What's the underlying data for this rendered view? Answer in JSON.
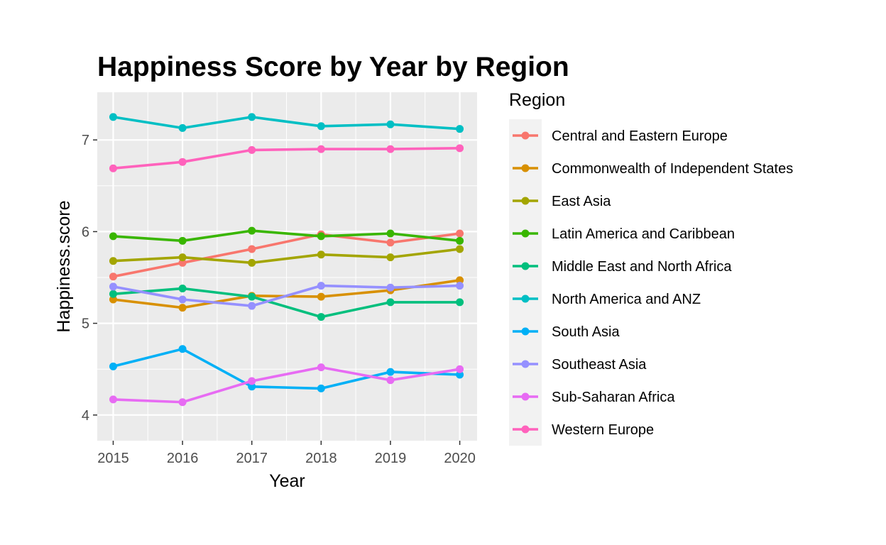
{
  "chart_data": {
    "type": "line",
    "title": "Happiness Score by Year by Region",
    "xlabel": "Year",
    "ylabel": "Happiness.score",
    "x": [
      2015,
      2016,
      2017,
      2018,
      2019,
      2020
    ],
    "xlim": [
      2014.77,
      2020.25
    ],
    "ylim": [
      3.72,
      7.52
    ],
    "y_ticks": [
      4,
      5,
      6,
      7
    ],
    "grid": true,
    "legend_title": "Region",
    "legend_position": "right",
    "series": [
      {
        "name": "Central and Eastern Europe",
        "color": "#F8766D",
        "values": [
          5.51,
          5.66,
          5.81,
          5.97,
          5.88,
          5.98
        ]
      },
      {
        "name": "Commonwealth of Independent States",
        "color": "#D89000",
        "values": [
          5.26,
          5.17,
          5.3,
          5.29,
          5.36,
          5.47
        ]
      },
      {
        "name": "East Asia",
        "color": "#A3A500",
        "values": [
          5.68,
          5.72,
          5.66,
          5.75,
          5.72,
          5.81
        ]
      },
      {
        "name": "Latin America and Caribbean",
        "color": "#39B600",
        "values": [
          5.95,
          5.9,
          6.01,
          5.95,
          5.98,
          5.9
        ]
      },
      {
        "name": "Middle East and North Africa",
        "color": "#00BF7D",
        "values": [
          5.32,
          5.38,
          5.29,
          5.07,
          5.23,
          5.23
        ]
      },
      {
        "name": "North America and ANZ",
        "color": "#00BFC4",
        "values": [
          7.25,
          7.13,
          7.25,
          7.15,
          7.17,
          7.12
        ]
      },
      {
        "name": "South Asia",
        "color": "#00B0F6",
        "values": [
          4.53,
          4.72,
          4.31,
          4.29,
          4.47,
          4.44
        ]
      },
      {
        "name": "Southeast Asia",
        "color": "#9590FF",
        "values": [
          5.4,
          5.26,
          5.19,
          5.41,
          5.39,
          5.41
        ]
      },
      {
        "name": "Sub-Saharan Africa",
        "color": "#E76BF3",
        "values": [
          4.17,
          4.14,
          4.37,
          4.52,
          4.38,
          4.5
        ]
      },
      {
        "name": "Western Europe",
        "color": "#FF62BC",
        "values": [
          6.69,
          6.76,
          6.89,
          6.9,
          6.9,
          6.91
        ]
      }
    ],
    "panel_background": "#EBEBEB",
    "gridline_color": "#FFFFFF"
  }
}
